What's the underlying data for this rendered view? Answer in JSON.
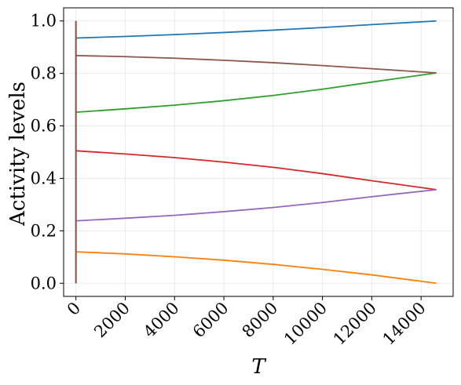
{
  "chart_data": {
    "type": "line",
    "title": "",
    "xlabel": "T",
    "ylabel": "Activity levels",
    "xlim": [
      -500,
      15300
    ],
    "ylim": [
      -0.05,
      1.05
    ],
    "xticks": [
      0,
      2000,
      4000,
      6000,
      8000,
      10000,
      12000,
      14000
    ],
    "xtick_labels": [
      "0",
      "2000",
      "4000",
      "6000",
      "8000",
      "10000",
      "12000",
      "14000"
    ],
    "yticks": [
      0.0,
      0.2,
      0.4,
      0.6,
      0.8,
      1.0
    ],
    "ytick_labels": [
      "0.0",
      "0.2",
      "0.4",
      "0.6",
      "0.8",
      "1.0"
    ],
    "grid": true,
    "legend": "none",
    "series": [
      {
        "color": "#1f77b4",
        "x": [
          0,
          2000,
          4000,
          6000,
          8000,
          10000,
          12000,
          14620
        ],
        "y": [
          0.935,
          0.941,
          0.948,
          0.956,
          0.965,
          0.975,
          0.986,
          1.0
        ]
      },
      {
        "color": "#ff7f0e",
        "x": [
          0,
          2000,
          4000,
          6000,
          8000,
          10000,
          12000,
          14620
        ],
        "y": [
          0.12,
          0.112,
          0.101,
          0.088,
          0.072,
          0.053,
          0.032,
          0.0
        ]
      },
      {
        "color": "#2ca02c",
        "x": [
          0,
          2000,
          4000,
          6000,
          8000,
          10000,
          12000,
          14620
        ],
        "y": [
          0.652,
          0.665,
          0.679,
          0.696,
          0.716,
          0.74,
          0.767,
          0.802
        ]
      },
      {
        "color": "#d62728",
        "x": [
          0,
          2000,
          4000,
          6000,
          8000,
          10000,
          12000,
          14620
        ],
        "y": [
          0.505,
          0.493,
          0.479,
          0.462,
          0.442,
          0.418,
          0.391,
          0.357
        ]
      },
      {
        "color": "#9467bd",
        "x": [
          0,
          2000,
          4000,
          6000,
          8000,
          10000,
          12000,
          14620
        ],
        "y": [
          0.238,
          0.248,
          0.259,
          0.273,
          0.289,
          0.308,
          0.33,
          0.357
        ]
      },
      {
        "color": "#8c564b",
        "x": [
          0,
          2000,
          4000,
          6000,
          8000,
          10000,
          12000,
          14620
        ],
        "y": [
          0.868,
          0.864,
          0.858,
          0.85,
          0.841,
          0.83,
          0.818,
          0.802
        ]
      }
    ],
    "initial_transient": {
      "x": 0,
      "y_range": [
        0.0,
        1.0
      ],
      "colors": [
        "#1f77b4",
        "#9467bd",
        "#8c564b"
      ]
    }
  }
}
